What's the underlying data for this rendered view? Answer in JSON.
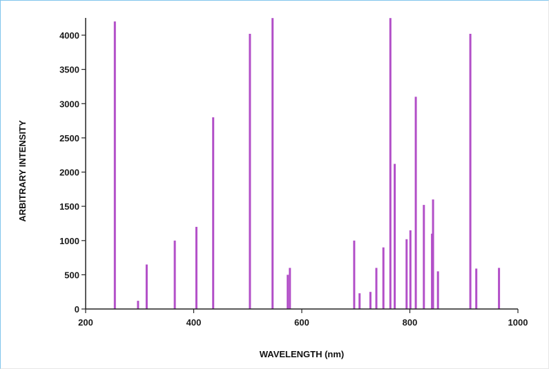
{
  "chart_data": {
    "type": "bar",
    "title": "",
    "xlabel": "WAVELENGTH (nm)",
    "ylabel": "ARBITRARY INTENSITY",
    "xlim": [
      200,
      1000
    ],
    "ylim": [
      0,
      4300
    ],
    "xticks": [
      200,
      400,
      600,
      800,
      1000
    ],
    "yticks": [
      0,
      500,
      1000,
      1500,
      2000,
      2500,
      3000,
      3500,
      4000
    ],
    "grid": false,
    "legend": "none",
    "color": "#b24fc8",
    "series": [
      {
        "x": [
          254,
          297,
          313,
          365,
          405,
          436,
          504,
          546,
          574,
          578,
          697,
          707,
          727,
          738,
          751,
          764,
          772,
          794,
          801,
          811,
          826,
          841,
          843,
          852,
          912,
          923,
          965
        ],
        "values": [
          4200,
          120,
          650,
          1000,
          1200,
          2800,
          4020,
          4250,
          500,
          600,
          1000,
          230,
          250,
          600,
          900,
          4250,
          2120,
          1020,
          1150,
          3100,
          1520,
          1100,
          1600,
          550,
          4020,
          590,
          600
        ]
      }
    ]
  }
}
